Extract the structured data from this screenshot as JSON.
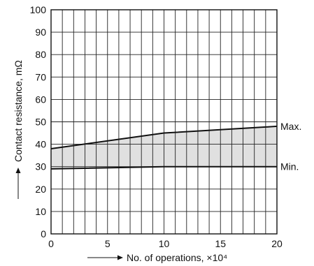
{
  "chart_data": {
    "type": "area",
    "title": "",
    "x": [
      0,
      10,
      20
    ],
    "xlabel": "No. of operations, ×10⁴",
    "ylabel": "Contact resistance, mΩ",
    "xlim": [
      0,
      20
    ],
    "ylim": [
      0,
      100
    ],
    "x_ticks": [
      "0",
      "5",
      "10",
      "15",
      "20"
    ],
    "y_ticks": [
      "0",
      "10",
      "20",
      "30",
      "40",
      "50",
      "60",
      "70",
      "80",
      "90",
      "100"
    ],
    "grid": true,
    "series": [
      {
        "name": "Max.",
        "x": [
          0,
          10,
          20
        ],
        "values": [
          38,
          45,
          48
        ]
      },
      {
        "name": "Min.",
        "x": [
          0,
          10,
          20
        ],
        "values": [
          29,
          30,
          30
        ]
      }
    ],
    "band": {
      "between": [
        "Min.",
        "Max."
      ],
      "fill": "#e0e0e0"
    },
    "colors": {
      "line": "#111111",
      "grid": "#222222",
      "band": "#e0e0e0"
    }
  }
}
